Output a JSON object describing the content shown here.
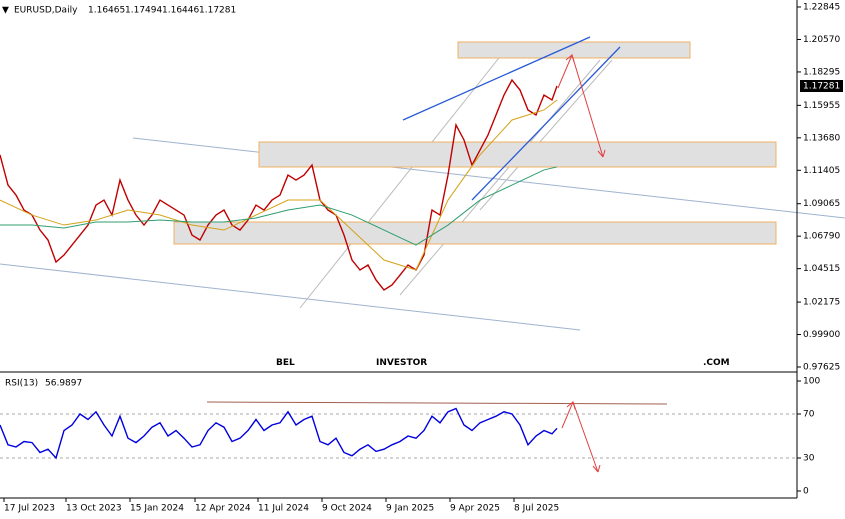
{
  "chart_data": [
    {
      "type": "line",
      "title": "EURUSD,Daily",
      "ohlc": [
        1.16465,
        1.17494,
        1.16446,
        1.17281
      ],
      "watermark": [
        "BEL",
        "INVESTOR",
        ".COM"
      ],
      "x": [
        0,
        8,
        16,
        24,
        32,
        40,
        48,
        56,
        64,
        72,
        80,
        88,
        96,
        104,
        112,
        120,
        128,
        136,
        144,
        152,
        160,
        168,
        176,
        184,
        192,
        200,
        208,
        216,
        224,
        232,
        240,
        248,
        256,
        264,
        272,
        280,
        288,
        296,
        304,
        312,
        320,
        328,
        336,
        344,
        352,
        360,
        368,
        376,
        384,
        392,
        400,
        408,
        416,
        424,
        432,
        440,
        448,
        456,
        464,
        472,
        480,
        488,
        496,
        504,
        512,
        520,
        528,
        536,
        544,
        552,
        557
      ],
      "series": [
        {
          "color": "#c00000",
          "values": [
            1.1248,
            1.1037,
            1.0967,
            1.0862,
            1.0827,
            1.0722,
            1.0652,
            1.0498,
            1.0547,
            1.0617,
            1.0687,
            1.0757,
            1.0897,
            1.0932,
            1.0827,
            1.1072,
            1.0932,
            1.0827,
            1.0757,
            1.0827,
            1.0932,
            1.0897,
            1.0862,
            1.0827,
            1.0687,
            1.0652,
            1.0757,
            1.0827,
            1.0862,
            1.0757,
            1.0722,
            1.0792,
            1.0897,
            1.0862,
            1.0932,
            1.0967,
            1.1107,
            1.1072,
            1.1107,
            1.1177,
            1.0932,
            1.0862,
            1.0827,
            1.0687,
            1.0512,
            1.0442,
            1.0477,
            1.0372,
            1.0302,
            1.0337,
            1.0407,
            1.0477,
            1.0442,
            1.0547,
            1.0862,
            1.0827,
            1.1107,
            1.1458,
            1.1353,
            1.1177,
            1.1282,
            1.1388,
            1.1528,
            1.1668,
            1.1773,
            1.1703,
            1.1563,
            1.1528,
            1.1668,
            1.1633,
            1.1731
          ]
        },
        {
          "color": "#d4a017",
          "x": [
            0,
            32,
            64,
            96,
            128,
            160,
            192,
            224,
            256,
            288,
            320,
            352,
            384,
            416,
            448,
            480,
            512,
            544,
            557
          ],
          "values": [
            1.0932,
            1.0827,
            1.0757,
            1.0792,
            1.0862,
            1.0827,
            1.0757,
            1.0722,
            1.0827,
            1.0932,
            1.0932,
            1.0722,
            1.0512,
            1.0442,
            1.0932,
            1.1248,
            1.1493,
            1.1563,
            1.1633
          ]
        },
        {
          "color": "#2e9e6e",
          "x": [
            0,
            32,
            64,
            96,
            128,
            160,
            192,
            224,
            256,
            288,
            320,
            352,
            384,
            416,
            448,
            480,
            512,
            544,
            557
          ],
          "values": [
            1.0757,
            1.0757,
            1.0736,
            1.0778,
            1.0778,
            1.0792,
            1.0778,
            1.0778,
            1.0806,
            1.0862,
            1.0897,
            1.0827,
            1.0722,
            1.0617,
            1.0757,
            1.0932,
            1.1037,
            1.1143,
            1.1164
          ]
        }
      ],
      "ylim": [
        0.97415,
        1.23335
      ],
      "yticks": [
        1.22845,
        {
          "value": 1.2057,
          "label": "1.20570"
        },
        1.18295,
        1.15955,
        {
          "value": 1.1368,
          "label": "1.13680"
        },
        1.11405,
        1.09065,
        {
          "value": 1.0679,
          "label": "1.06790"
        },
        1.04515,
        1.02175,
        {
          "value": 0.999,
          "label": "0.99900"
        },
        0.97625
      ]
    },
    {
      "type": "line",
      "title": "RSI(13)",
      "last": 56.9897,
      "x": [
        0,
        8,
        16,
        24,
        32,
        40,
        48,
        56,
        64,
        72,
        80,
        88,
        96,
        104,
        112,
        120,
        128,
        136,
        144,
        152,
        160,
        168,
        176,
        184,
        192,
        200,
        208,
        216,
        224,
        232,
        240,
        248,
        256,
        264,
        272,
        280,
        288,
        296,
        304,
        312,
        320,
        328,
        336,
        344,
        352,
        360,
        368,
        376,
        384,
        392,
        400,
        408,
        416,
        424,
        432,
        440,
        448,
        456,
        464,
        472,
        480,
        488,
        496,
        504,
        512,
        520,
        528,
        536,
        544,
        552,
        557
      ],
      "series": [
        {
          "color": "#0000e0",
          "values": [
            60,
            42,
            40,
            45,
            44,
            35,
            38,
            30,
            55,
            60,
            70,
            65,
            72,
            60,
            50,
            68,
            48,
            44,
            50,
            58,
            62,
            50,
            55,
            48,
            40,
            42,
            55,
            62,
            58,
            45,
            48,
            55,
            65,
            55,
            60,
            62,
            72,
            60,
            65,
            68,
            45,
            42,
            48,
            35,
            32,
            38,
            42,
            36,
            38,
            42,
            45,
            50,
            48,
            55,
            68,
            62,
            72,
            75,
            60,
            55,
            62,
            65,
            68,
            72,
            70,
            60,
            42,
            50,
            55,
            52,
            57
          ]
        }
      ],
      "ylim": [
        0,
        100
      ],
      "yticks": [
        0,
        30,
        70,
        100
      ],
      "xlim": [
        0,
        797
      ],
      "xticks": [
        {
          "value": 4,
          "label": "17 Jul 2023"
        },
        {
          "value": 66,
          "label": "13 Oct 2023"
        },
        {
          "value": 130,
          "label": "15 Jan 2024"
        },
        {
          "value": 195,
          "label": "12 Apr 2024"
        },
        {
          "value": 258,
          "label": "11 Jul 2024"
        },
        {
          "value": 322,
          "label": "9 Oct 2024"
        },
        {
          "value": 386,
          "label": "9 Jan 2025"
        },
        {
          "value": 450,
          "label": "9 Apr 2025"
        },
        {
          "value": 514,
          "label": "8 Jul 2025"
        }
      ]
    }
  ]
}
